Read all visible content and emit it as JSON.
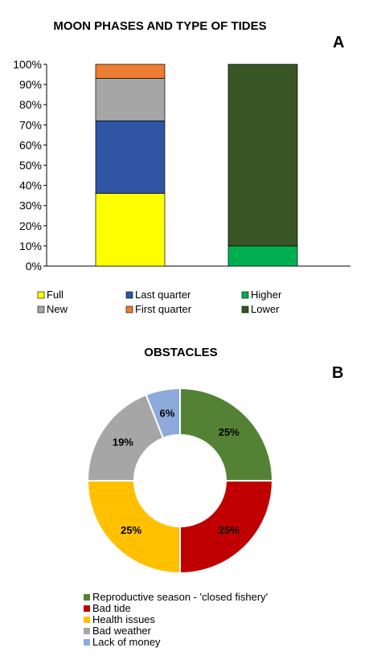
{
  "chart_data": [
    {
      "type": "bar",
      "stacked": true,
      "title": "MOON PHASES AND TYPE OF TIDES",
      "panel_label": "A",
      "xlabel": "",
      "ylabel": "",
      "ylim": [
        0,
        100
      ],
      "y_ticks": [
        "0%",
        "10%",
        "20%",
        "30%",
        "40%",
        "50%",
        "60%",
        "70%",
        "80%",
        "90%",
        "100%"
      ],
      "grid": false,
      "legend_position": "bottom",
      "bars": [
        {
          "segments": [
            {
              "name": "Full",
              "value": 36,
              "color": "#ffff00"
            },
            {
              "name": "Last quarter",
              "value": 36,
              "color": "#2f55a4"
            },
            {
              "name": "New",
              "value": 21,
              "color": "#a6a6a6"
            },
            {
              "name": "First quarter",
              "value": 7,
              "color": "#ed7d31"
            }
          ]
        },
        {
          "segments": [
            {
              "name": "Higher",
              "value": 10,
              "color": "#00b050"
            },
            {
              "name": "Lower",
              "value": 90,
              "color": "#375623"
            }
          ]
        }
      ],
      "legend": [
        {
          "label": "Full",
          "color": "#ffff00"
        },
        {
          "label": "New",
          "color": "#a6a6a6"
        },
        {
          "label": "Last quarter",
          "color": "#2f55a4"
        },
        {
          "label": "First quarter",
          "color": "#ed7d31"
        },
        {
          "label": "Higher",
          "color": "#00b050"
        },
        {
          "label": "Lower",
          "color": "#375623"
        }
      ]
    },
    {
      "type": "pie",
      "donut": true,
      "title": "OBSTACLES",
      "panel_label": "B",
      "legend_position": "bottom",
      "slices": [
        {
          "label": "Reproductive season - 'closed fishery'",
          "value": 25,
          "display": "25%",
          "color": "#548235"
        },
        {
          "label": "Bad tide",
          "value": 25,
          "display": "25%",
          "color": "#c00000"
        },
        {
          "label": "Health issues",
          "value": 25,
          "display": "25%",
          "color": "#ffc000"
        },
        {
          "label": "Bad weather",
          "value": 19,
          "display": "19%",
          "color": "#a6a6a6"
        },
        {
          "label": "Lack of money",
          "value": 6,
          "display": "6%",
          "color": "#8eaadb"
        }
      ]
    }
  ]
}
